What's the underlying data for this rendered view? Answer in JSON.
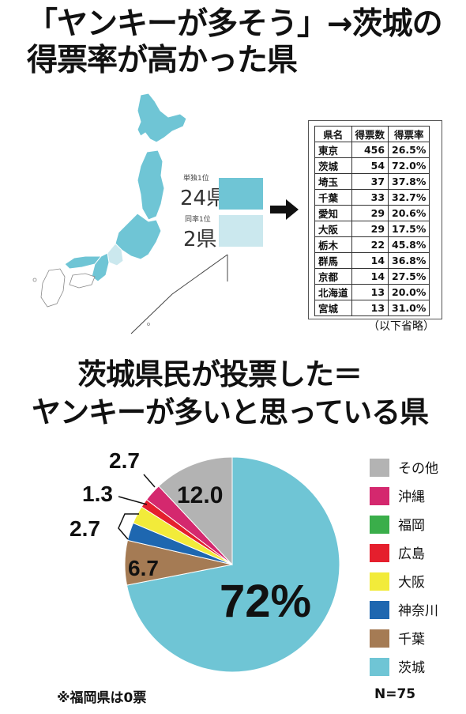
{
  "title": {
    "line1": "「ヤンキーが多そう」→茨城の",
    "line2": "得票率が高かった県"
  },
  "map_legend": {
    "single_first_small": "単独1位",
    "single_first_count": "24県",
    "tied_first_small": "同率1位",
    "tied_first_count": "2県",
    "single_color": "#6fc5d5",
    "tied_color": "#cbe8ee"
  },
  "table": {
    "headers": [
      "県名",
      "得票数",
      "得票率"
    ],
    "rows": [
      [
        "東京",
        "456",
        "26.5%"
      ],
      [
        "茨城",
        "54",
        "72.0%"
      ],
      [
        "埼玉",
        "37",
        "37.8%"
      ],
      [
        "千葉",
        "33",
        "32.7%"
      ],
      [
        "愛知",
        "29",
        "20.6%"
      ],
      [
        "大阪",
        "29",
        "17.5%"
      ],
      [
        "栃木",
        "22",
        "45.8%"
      ],
      [
        "群馬",
        "14",
        "36.8%"
      ],
      [
        "京都",
        "14",
        "27.5%"
      ],
      [
        "北海道",
        "13",
        "20.0%"
      ],
      [
        "宮城",
        "13",
        "31.0%"
      ]
    ],
    "note": "（以下省略）"
  },
  "subtitle": {
    "line1": "茨城県民が投票した＝",
    "line2": "ヤンキーが多いと思っている県"
  },
  "chart_data": {
    "type": "pie",
    "categories": [
      "茨城",
      "千葉",
      "神奈川",
      "大阪",
      "広島",
      "福岡",
      "沖縄",
      "その他"
    ],
    "values": [
      72.0,
      6.7,
      2.7,
      2.7,
      1.3,
      0,
      2.7,
      12.0
    ],
    "colors": [
      "#6fc5d5",
      "#a57b54",
      "#1e67b0",
      "#f2eb3a",
      "#e51f2d",
      "#3aae4a",
      "#d4286e",
      "#b3b3b3"
    ],
    "data_labels": {
      "ibaraki": "72%",
      "chiba": "6.7",
      "kanagawa_osaka": "2.7",
      "hiroshima": "1.3",
      "okinawa": "2.7",
      "other": "12.0"
    },
    "legend_order": [
      "その他",
      "沖縄",
      "福岡",
      "広島",
      "大阪",
      "神奈川",
      "千葉",
      "茨城"
    ],
    "legend_placement": "right"
  },
  "footer": {
    "note": "※福岡県は0票",
    "n": "N=75"
  }
}
